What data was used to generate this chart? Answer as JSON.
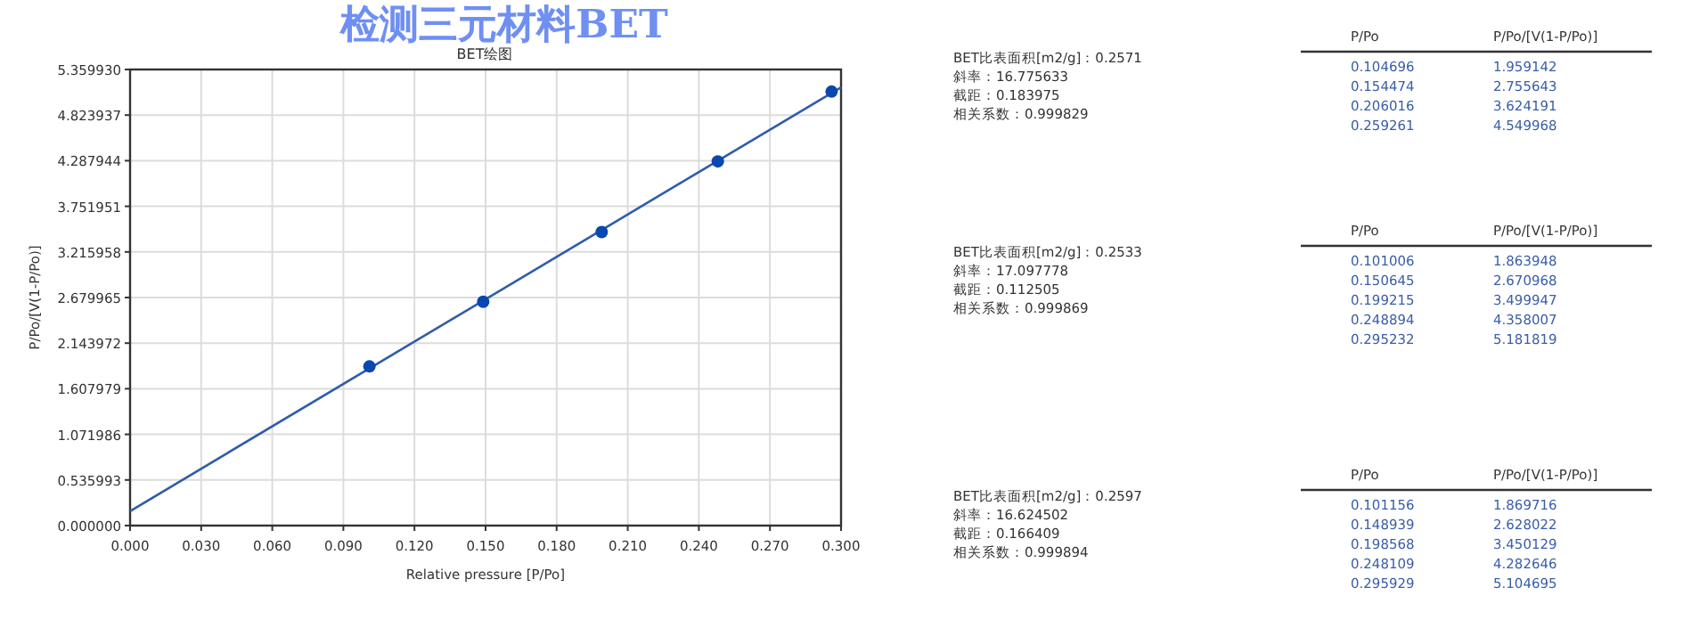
{
  "chart_data": [
    {
      "type": "scatter",
      "title": "检测三元材料BET",
      "subtitle": "BET绘图",
      "xlabel": "Relative pressure [P/Po]",
      "ylabel": "P/Po/[V(1-P/Po)]",
      "xlim": [
        0,
        0.3
      ],
      "ylim": [
        0,
        5.35993
      ],
      "xticks": [
        {
          "value": 0,
          "label": "0.000"
        },
        {
          "value": 0.03,
          "label": "0.030"
        },
        {
          "value": 0.06,
          "label": "0.060"
        },
        {
          "value": 0.09,
          "label": "0.090"
        },
        {
          "value": 0.12,
          "label": "0.120"
        },
        {
          "value": 0.15,
          "label": "0.150"
        },
        {
          "value": 0.18,
          "label": "0.180"
        },
        {
          "value": 0.21,
          "label": "0.210"
        },
        {
          "value": 0.24,
          "label": "0.240"
        },
        {
          "value": 0.27,
          "label": "0.270"
        },
        {
          "value": 0.3,
          "label": "0.300"
        }
      ],
      "yticks": [
        {
          "value": 0,
          "label": "0.000000"
        },
        0.535993,
        1.071986,
        1.607979,
        2.143972,
        2.679965,
        3.215958,
        3.751951,
        4.287944,
        4.823937,
        {
          "value": 5.35993,
          "label": "5.359930"
        }
      ],
      "grid": true,
      "series": [
        {
          "type": "line",
          "color": "#2f5ca8",
          "x": [
            0,
            0.3
          ],
          "values": [
            0.17,
            5.15
          ]
        },
        {
          "type": "scatter",
          "marker": "circle",
          "color": "#0b47b0",
          "x": [
            0.101,
            0.149,
            0.199,
            0.248,
            0.296
          ],
          "values": [
            1.87,
            2.63,
            3.45,
            4.28,
            5.1
          ]
        }
      ]
    },
    {
      "type": "other",
      "annotations": [
        "BET比表面积[m2/g]：0.2571",
        "斜率：16.775633",
        "截距：0.183975",
        "相关系数：0.999829",
        "P/Po",
        "P/Po/[V(1-P/Po)]",
        "0.104696",
        "1.959142",
        "0.154474",
        "2.755643",
        "0.206016",
        "3.624191",
        "0.259261",
        "4.549968"
      ]
    },
    {
      "type": "other",
      "annotations": [
        "BET比表面积[m2/g]：0.2533",
        "斜率：17.097778",
        "截距：0.112505",
        "相关系数：0.999869",
        "P/Po",
        "P/Po/[V(1-P/Po)]",
        "0.101006",
        "1.863948",
        "0.150645",
        "2.670968",
        "0.199215",
        "3.499947",
        "0.248894",
        "4.358007",
        "0.295232",
        "5.181819"
      ]
    },
    {
      "type": "other",
      "annotations": [
        "BET比表面积[m2/g]：0.2597",
        "斜率：16.624502",
        "截距：0.166409",
        "相关系数：0.999894",
        "P/Po",
        "P/Po/[V(1-P/Po)]",
        "0.101156",
        "1.869716",
        "0.148939",
        "2.628022",
        "0.198568",
        "3.450129",
        "0.248109",
        "4.282646",
        "0.295929",
        "5.104695"
      ]
    }
  ]
}
